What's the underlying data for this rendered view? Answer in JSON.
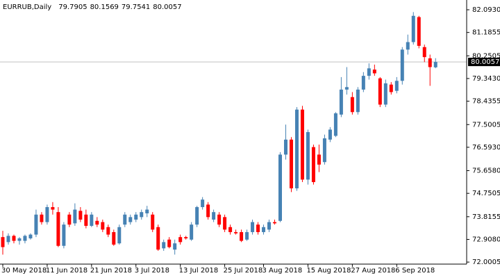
{
  "chart_data": {
    "type": "candlestick",
    "title": "EURRUB,Daily",
    "up_color": "#4682b4",
    "down_color": "#ff0000",
    "price_line_color": "#c0c0c0",
    "ylim": [
      71.92,
      82.4
    ],
    "yticks": [
      {
        "value": 82.093,
        "label": "82.0930"
      },
      81.1855,
      80.2505,
      {
        "value": 79.343,
        "label": "79.3430"
      },
      78.4355,
      77.5005,
      {
        "value": 76.593,
        "label": "76.5930"
      },
      {
        "value": 75.658,
        "label": "75.6580"
      },
      74.7505,
      73.8155,
      {
        "value": 72.908,
        "label": "72.9080"
      },
      72.0005
    ],
    "categories": [
      "30 May 2018",
      null,
      null,
      null,
      null,
      null,
      null,
      null,
      "11 Jun 2018",
      null,
      null,
      null,
      null,
      null,
      null,
      null,
      "21 Jun 2018",
      null,
      null,
      null,
      null,
      null,
      null,
      null,
      "3 Jul 2018",
      null,
      null,
      null,
      null,
      null,
      null,
      null,
      "13 Jul 2018",
      null,
      null,
      null,
      null,
      null,
      null,
      null,
      "25 Jul 2018",
      null,
      null,
      null,
      null,
      null,
      null,
      "3 Aug 2018",
      null,
      null,
      null,
      null,
      null,
      null,
      null,
      "15 Aug 2018",
      null,
      null,
      null,
      null,
      null,
      null,
      null,
      "27 Aug 2018",
      null,
      null,
      null,
      null,
      null,
      null,
      null,
      "6 Sep 2018",
      null,
      null,
      null,
      null,
      null,
      null,
      null
    ],
    "open": [
      73.0,
      72.8,
      73.05,
      72.85,
      72.85,
      72.95,
      73.1,
      73.9,
      73.6,
      74.2,
      74.0,
      72.65,
      73.9,
      73.55,
      74.05,
      73.9,
      73.45,
      73.65,
      73.6,
      73.4,
      73.2,
      72.75,
      73.5,
      73.6,
      73.7,
      73.8,
      73.95,
      73.9,
      73.4,
      72.55,
      72.9,
      72.5,
      73.0,
      73.0,
      72.9,
      73.5,
      74.2,
      74.3,
      73.7,
      73.9,
      73.8,
      73.4,
      73.2,
      73.2,
      72.9,
      73.2,
      73.5,
      73.2,
      73.3,
      73.6,
      73.65,
      76.3,
      76.9,
      74.95,
      78.1,
      75.3,
      76.6,
      76.3,
      76.0,
      76.9,
      77.05,
      77.9,
      78.9,
      78.6,
      78.0,
      78.9,
      79.45,
      79.7,
      79.35,
      78.3,
      79.1,
      78.85,
      79.25,
      80.5,
      80.8,
      81.8,
      80.6,
      80.15,
      79.7905
    ],
    "high": [
      73.25,
      73.15,
      73.1,
      73.0,
      73.1,
      73.15,
      74.1,
      74.0,
      74.3,
      74.4,
      74.2,
      73.6,
      74.0,
      74.35,
      74.2,
      74.1,
      74.0,
      73.8,
      73.7,
      73.5,
      73.3,
      73.5,
      74.0,
      73.9,
      74.0,
      74.1,
      74.25,
      74.0,
      73.5,
      72.9,
      73.0,
      72.9,
      73.1,
      73.05,
      73.6,
      74.25,
      74.6,
      74.4,
      74.1,
      74.0,
      73.9,
      73.5,
      73.3,
      73.3,
      73.3,
      73.7,
      73.6,
      73.5,
      73.7,
      73.7,
      76.4,
      77.5,
      77.0,
      78.2,
      78.25,
      77.3,
      76.7,
      76.7,
      77.1,
      77.4,
      78.0,
      79.4,
      79.8,
      78.8,
      79.0,
      79.6,
      79.95,
      79.9,
      79.4,
      79.3,
      79.2,
      79.4,
      80.6,
      81.1,
      82.0,
      81.85,
      80.7,
      80.3,
      80.1569
    ],
    "low": [
      72.3,
      72.7,
      72.75,
      72.7,
      72.75,
      72.9,
      73.0,
      73.5,
      73.5,
      73.9,
      72.6,
      72.55,
      73.4,
      73.45,
      73.6,
      73.35,
      73.4,
      73.4,
      73.2,
      73.0,
      72.65,
      72.7,
      73.4,
      73.5,
      73.6,
      73.7,
      73.8,
      73.2,
      72.45,
      72.45,
      72.55,
      72.3,
      72.7,
      72.9,
      72.85,
      73.4,
      74.1,
      73.7,
      73.6,
      73.4,
      73.2,
      73.1,
      73.1,
      72.8,
      72.85,
      73.1,
      73.1,
      73.1,
      73.2,
      73.5,
      73.6,
      76.1,
      74.8,
      74.85,
      75.2,
      75.1,
      75.1,
      75.6,
      75.9,
      76.8,
      77.0,
      77.8,
      78.7,
      77.9,
      77.9,
      78.8,
      79.3,
      79.45,
      78.2,
      78.2,
      78.7,
      78.75,
      79.1,
      80.3,
      80.7,
      80.55,
      80.0,
      79.05,
      79.7541
    ],
    "close": [
      72.6,
      73.05,
      72.85,
      72.95,
      73.05,
      73.1,
      73.9,
      73.6,
      74.2,
      74.1,
      72.65,
      73.5,
      73.5,
      74.1,
      73.7,
      73.45,
      73.9,
      73.5,
      73.3,
      73.1,
      72.7,
      73.4,
      73.9,
      73.8,
      73.9,
      74.0,
      74.1,
      73.3,
      72.5,
      72.8,
      72.6,
      72.75,
      72.8,
      72.95,
      73.5,
      74.2,
      74.5,
      73.8,
      74.0,
      73.5,
      73.3,
      73.2,
      73.15,
      72.85,
      73.2,
      73.6,
      73.2,
      73.4,
      73.6,
      73.55,
      76.3,
      76.9,
      74.95,
      78.1,
      75.3,
      77.2,
      75.2,
      75.9,
      76.95,
      77.3,
      77.95,
      78.9,
      79.0,
      78.0,
      78.9,
      79.45,
      79.75,
      79.55,
      78.3,
      79.15,
      78.8,
      79.25,
      80.5,
      80.8,
      81.85,
      80.65,
      80.2,
      79.8,
      80.0057
    ]
  }
}
